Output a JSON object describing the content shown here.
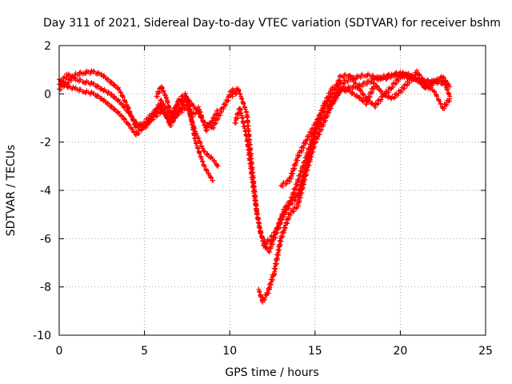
{
  "chart_data": {
    "type": "scatter",
    "title": "Day 311 of 2021, Sidereal Day-to-day VTEC variation (SDTVAR) for receiver bshm",
    "xlabel": "GPS time / hours",
    "ylabel": "SDTVAR / TECUs",
    "xlim": [
      0,
      25
    ],
    "ylim": [
      -10,
      2
    ],
    "xticks": [
      0,
      5,
      10,
      15,
      20,
      25
    ],
    "yticks": [
      2,
      0,
      -2,
      -4,
      -6,
      -8,
      -10
    ],
    "grid": true,
    "marker": "+",
    "series": [
      {
        "name": "track-a",
        "color": "#ff0000",
        "x": [
          0.0,
          0.5,
          1.0,
          1.5,
          2.0,
          2.5,
          3.0,
          3.5,
          4.0,
          4.5,
          5.0,
          5.5,
          6.0,
          6.5,
          7.0,
          7.5,
          8.0,
          8.5,
          9.0,
          9.3
        ],
        "y": [
          0.6,
          0.3,
          0.2,
          0.1,
          0.0,
          -0.2,
          -0.5,
          -0.8,
          -1.2,
          -1.7,
          -1.3,
          -1.0,
          -0.7,
          -1.1,
          -0.8,
          -0.5,
          -1.6,
          -2.4,
          -2.7,
          -3.0
        ]
      },
      {
        "name": "track-b",
        "color": "#ff0000",
        "x": [
          0.0,
          0.5,
          1.0,
          1.5,
          2.0,
          2.5,
          3.0,
          3.5,
          4.0,
          4.5,
          5.0,
          5.5,
          6.0,
          6.5,
          7.0,
          7.5,
          8.0,
          8.5,
          9.0,
          9.5,
          10.0,
          10.5
        ],
        "y": [
          0.4,
          0.8,
          0.6,
          0.5,
          0.4,
          0.2,
          0.0,
          -0.3,
          -0.7,
          -1.2,
          -1.4,
          -0.9,
          -0.3,
          -0.9,
          -0.4,
          -0.2,
          -0.6,
          -1.2,
          -1.4,
          -0.7,
          -0.1,
          0.1
        ]
      },
      {
        "name": "track-c",
        "color": "#ff0000",
        "x": [
          0.0,
          0.5,
          1.0,
          1.5,
          2.0,
          2.5,
          3.0,
          3.5,
          4.0,
          4.5,
          5.0,
          5.5,
          6.0,
          6.5,
          7.0,
          7.5,
          8.0,
          8.5,
          9.0
        ],
        "y": [
          0.2,
          0.5,
          0.8,
          0.9,
          0.9,
          0.8,
          0.5,
          0.2,
          -0.5,
          -1.4,
          -1.2,
          -0.8,
          -0.5,
          -1.3,
          -0.7,
          -0.2,
          -2.0,
          -3.0,
          -3.6
        ]
      },
      {
        "name": "track-d",
        "color": "#ff0000",
        "x": [
          10.0,
          10.5,
          11.0,
          11.3,
          11.6,
          12.0,
          12.3,
          12.6,
          13.0,
          13.5,
          14.0,
          14.5,
          15.0,
          15.5,
          16.0,
          17.0,
          18.0,
          19.0,
          20.0,
          21.0,
          22.0,
          22.8
        ],
        "y": [
          0.1,
          0.2,
          -0.8,
          -3.0,
          -5.0,
          -6.3,
          -6.5,
          -6.0,
          -5.2,
          -4.6,
          -4.2,
          -3.0,
          -1.5,
          -0.5,
          0.2,
          0.6,
          0.8,
          0.6,
          0.9,
          0.6,
          0.5,
          0.4
        ]
      },
      {
        "name": "track-e",
        "color": "#ff0000",
        "x": [
          10.3,
          10.6,
          11.0,
          11.5,
          11.8,
          12.1,
          12.4,
          12.8,
          13.2,
          13.6,
          14.0,
          14.5,
          15.0,
          15.5,
          16.0,
          16.5,
          17.5,
          18.5,
          19.5,
          20.5,
          21.5,
          22.5,
          22.9
        ],
        "y": [
          -1.2,
          -0.6,
          -1.8,
          -4.5,
          -5.8,
          -6.2,
          -6.0,
          -5.6,
          -4.8,
          -4.4,
          -3.6,
          -2.6,
          -1.6,
          -0.9,
          -0.4,
          0.2,
          0.3,
          0.6,
          0.8,
          0.7,
          0.4,
          0.6,
          -0.1
        ]
      },
      {
        "name": "track-f",
        "color": "#ff0000",
        "x": [
          11.7,
          11.9,
          12.2,
          12.6,
          13.0,
          13.5,
          14.0,
          14.5,
          15.0,
          15.5,
          16.0,
          16.5,
          17.0,
          17.5,
          18.0,
          18.5,
          19.0,
          19.5,
          20.0,
          20.5,
          21.0,
          21.5,
          22.0,
          22.5,
          22.9
        ],
        "y": [
          -8.1,
          -8.6,
          -8.3,
          -7.4,
          -6.0,
          -5.0,
          -4.6,
          -3.2,
          -2.0,
          -1.2,
          -0.4,
          0.2,
          0.1,
          -0.1,
          -0.4,
          0.4,
          0.0,
          -0.2,
          0.1,
          0.5,
          0.9,
          0.4,
          0.1,
          -0.6,
          -0.2
        ]
      },
      {
        "name": "track-g",
        "color": "#ff0000",
        "x": [
          13.0,
          13.5,
          14.0,
          14.5,
          15.0,
          15.5,
          16.0,
          16.5,
          17.0,
          17.5,
          18.0,
          18.5,
          19.0,
          19.5,
          20.0,
          20.5,
          21.0,
          21.5,
          22.0,
          22.5,
          22.9
        ],
        "y": [
          -3.8,
          -3.6,
          -2.6,
          -1.9,
          -1.3,
          -0.6,
          -0.1,
          0.7,
          0.8,
          0.3,
          -0.2,
          -0.5,
          -0.1,
          0.3,
          0.7,
          0.8,
          0.6,
          0.2,
          0.5,
          0.7,
          0.3
        ]
      },
      {
        "name": "track-h",
        "color": "#ff0000",
        "x": [
          5.7,
          6.0,
          6.3,
          6.6,
          7.0,
          7.4,
          7.8,
          8.2,
          8.6,
          9.0,
          9.3
        ],
        "y": [
          -0.1,
          0.3,
          -0.2,
          -1.0,
          -0.3,
          0.0,
          -0.9,
          -0.6,
          -1.5,
          -1.1,
          -0.7
        ]
      }
    ]
  }
}
